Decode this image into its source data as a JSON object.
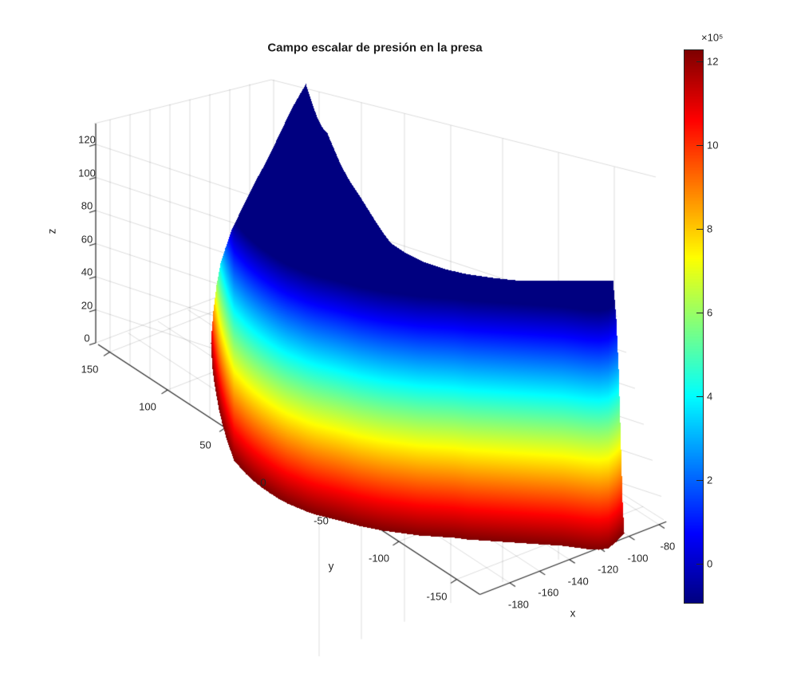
{
  "chart_data": {
    "type": "surface",
    "title": "Campo escalar de presión en la presa",
    "xlabel": "x",
    "ylabel": "y",
    "zlabel": "z",
    "x_ticks": [
      -180,
      -160,
      -140,
      -120,
      -100,
      -80
    ],
    "y_ticks": [
      150,
      100,
      50,
      0,
      -50,
      -100,
      -150
    ],
    "z_ticks": [
      0,
      20,
      40,
      60,
      80,
      100,
      120
    ],
    "axis_ranges": {
      "x": [
        -200,
        -75
      ],
      "y": [
        -170,
        160
      ],
      "z": [
        0,
        130
      ]
    },
    "grid": "on",
    "colormap": "jet",
    "colorbar": {
      "exponent_label": "×10⁵",
      "ticks": [
        0,
        2,
        4,
        6,
        8,
        10,
        12
      ],
      "tick_scale": 100000,
      "value_range": [
        -92000,
        1228000
      ],
      "position": "right"
    },
    "surface_summary": {
      "shape": "curved arch-dam wall rising from the base plane to a peaked crest at the far end",
      "color_meaning": "hydrostatic pressure: dark red ≈ 1.23e6 Pa at the base, dark blue ≤ 0 at the crest",
      "pressure_at_base": 1228000,
      "pressure_min": -92000,
      "crest_peak_z": 134,
      "base_z": 0
    }
  }
}
